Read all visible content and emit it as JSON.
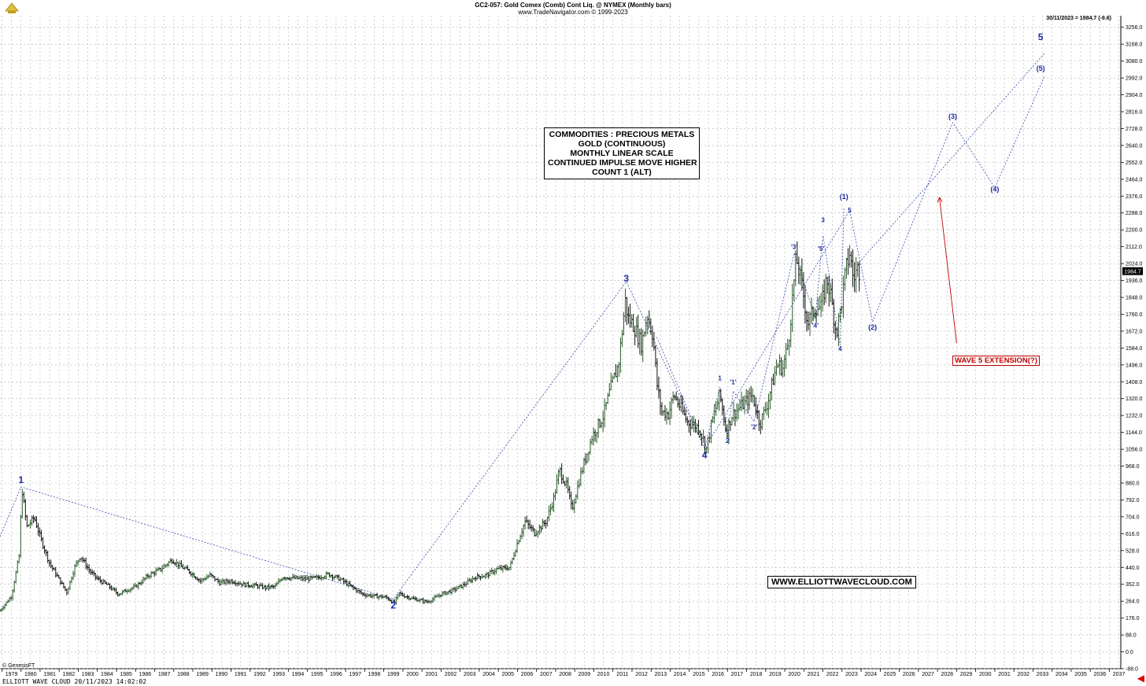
{
  "header": {
    "title": "GC2-057:  Gold Comex (Comb) Cont Liq. @ NYMEX  (Monthly bars)",
    "source": "www.TradeNavigator.com © 1999-2023"
  },
  "last_price_info": "30/11/2023 = 1984.7 (-9.6)",
  "genesis_label": "© GenesisFT",
  "footer": "ELLIOTT WAVE CLOUD    20/11/2023 14:02:02",
  "title_box": [
    "COMMODITIES : PRECIOUS METALS",
    "GOLD (CONTINUOUS)",
    "MONTHLY LINEAR SCALE",
    "CONTINUED IMPULSE MOVE HIGHER",
    "COUNT 1 (ALT)"
  ],
  "website": "WWW.ELLIOTTWAVECLOUD.COM",
  "extension_label": "WAVE 5 EXTENSION(?)",
  "colors": {
    "wave_label": "#1a2aa0",
    "projection": "#3a4ab0",
    "extension": "#c00000",
    "bar_up": "#2a5a2a",
    "bar_down": "#111111",
    "grid": "#b0b0b0"
  },
  "chart_data": {
    "type": "bar",
    "title": "GC2-057:  Gold Comex (Comb) Cont Liq. @ NYMEX  (Monthly bars)",
    "x_range": [
      1978.9,
      2037.6
    ],
    "ylim": [
      -88,
      3300
    ],
    "y_ticks": [
      -88.0,
      0.0,
      88.0,
      176.0,
      264.0,
      352.0,
      440.0,
      528.0,
      616.0,
      704.0,
      792.0,
      880.0,
      968.0,
      1056.0,
      1144.0,
      1232.0,
      1320.0,
      1408.0,
      1496.0,
      1584.0,
      1672.0,
      1760.0,
      1848.0,
      1936.0,
      2024.0,
      2112.0,
      2200.0,
      2288.0,
      2376.0,
      2464.0,
      2552.0,
      2640.0,
      2728.0,
      2816.0,
      2904.0,
      2992.0,
      3080.0,
      3168.0,
      3256.0
    ],
    "x_ticks": [
      1979,
      1980,
      1981,
      1982,
      1983,
      1984,
      1985,
      1986,
      1987,
      1988,
      1989,
      1990,
      1991,
      1992,
      1993,
      1994,
      1995,
      1996,
      1997,
      1998,
      1999,
      2000,
      2001,
      2002,
      2003,
      2004,
      2005,
      2006,
      2007,
      2008,
      2009,
      2010,
      2011,
      2012,
      2013,
      2014,
      2015,
      2016,
      2017,
      2018,
      2019,
      2020,
      2021,
      2022,
      2023,
      2024,
      2025,
      2026,
      2027,
      2028,
      2029,
      2030,
      2031,
      2032,
      2033,
      2034,
      2035,
      2036,
      2037
    ],
    "last_value": "1984.7",
    "price_path": [
      [
        1978.9,
        215
      ],
      [
        1979.5,
        290
      ],
      [
        1979.9,
        500
      ],
      [
        1980.05,
        850
      ],
      [
        1980.3,
        650
      ],
      [
        1980.7,
        700
      ],
      [
        1981.0,
        600
      ],
      [
        1981.5,
        460
      ],
      [
        1982.4,
        310
      ],
      [
        1982.8,
        440
      ],
      [
        1983.1,
        500
      ],
      [
        1983.6,
        420
      ],
      [
        1984.0,
        380
      ],
      [
        1984.5,
        350
      ],
      [
        1985.1,
        300
      ],
      [
        1985.5,
        320
      ],
      [
        1986.0,
        340
      ],
      [
        1986.7,
        400
      ],
      [
        1987.3,
        430
      ],
      [
        1987.9,
        480
      ],
      [
        1988.3,
        450
      ],
      [
        1988.8,
        420
      ],
      [
        1989.4,
        370
      ],
      [
        1989.9,
        400
      ],
      [
        1990.4,
        360
      ],
      [
        1991.0,
        370
      ],
      [
        1991.7,
        350
      ],
      [
        1992.3,
        345
      ],
      [
        1992.8,
        335
      ],
      [
        1993.3,
        340
      ],
      [
        1993.7,
        390
      ],
      [
        1994.2,
        385
      ],
      [
        1994.9,
        380
      ],
      [
        1995.5,
        385
      ],
      [
        1996.1,
        405
      ],
      [
        1996.7,
        380
      ],
      [
        1997.3,
        340
      ],
      [
        1997.9,
        300
      ],
      [
        1998.5,
        290
      ],
      [
        1999.1,
        285
      ],
      [
        1999.55,
        255
      ],
      [
        1999.8,
        305
      ],
      [
        2000.1,
        290
      ],
      [
        2000.6,
        275
      ],
      [
        2001.3,
        260
      ],
      [
        2002.0,
        300
      ],
      [
        2002.6,
        320
      ],
      [
        2003.2,
        350
      ],
      [
        2003.8,
        390
      ],
      [
        2004.4,
        400
      ],
      [
        2004.9,
        430
      ],
      [
        2005.6,
        440
      ],
      [
        2006.0,
        570
      ],
      [
        2006.4,
        680
      ],
      [
        2006.9,
        620
      ],
      [
        2007.5,
        680
      ],
      [
        2007.9,
        800
      ],
      [
        2008.2,
        950
      ],
      [
        2008.6,
        860
      ],
      [
        2008.85,
        740
      ],
      [
        2009.3,
        920
      ],
      [
        2009.9,
        1120
      ],
      [
        2010.5,
        1230
      ],
      [
        2010.9,
        1380
      ],
      [
        2011.3,
        1500
      ],
      [
        2011.65,
        1830
      ],
      [
        2011.8,
        1740
      ],
      [
        2012.1,
        1700
      ],
      [
        2012.5,
        1600
      ],
      [
        2012.8,
        1760
      ],
      [
        2013.1,
        1650
      ],
      [
        2013.3,
        1400
      ],
      [
        2013.55,
        1250
      ],
      [
        2013.9,
        1240
      ],
      [
        2014.2,
        1340
      ],
      [
        2014.6,
        1260
      ],
      [
        2014.9,
        1200
      ],
      [
        2015.5,
        1170
      ],
      [
        2015.9,
        1060
      ],
      [
        2016.2,
        1200
      ],
      [
        2016.6,
        1340
      ],
      [
        2016.95,
        1140
      ],
      [
        2017.2,
        1230
      ],
      [
        2017.7,
        1280
      ],
      [
        2017.95,
        1300
      ],
      [
        2018.3,
        1340
      ],
      [
        2018.7,
        1190
      ],
      [
        2019.1,
        1300
      ],
      [
        2019.6,
        1500
      ],
      [
        2019.9,
        1480
      ],
      [
        2020.2,
        1620
      ],
      [
        2020.6,
        2060
      ],
      [
        2021.0,
        1850
      ],
      [
        2021.2,
        1710
      ],
      [
        2021.6,
        1800
      ],
      [
        2021.9,
        1790
      ],
      [
        2022.2,
        1950
      ],
      [
        2022.4,
        1860
      ],
      [
        2022.7,
        1660
      ],
      [
        2022.95,
        1800
      ],
      [
        2023.2,
        1990
      ],
      [
        2023.4,
        2080
      ],
      [
        2023.6,
        1940
      ],
      [
        2023.8,
        2000
      ],
      [
        2023.9,
        1985
      ]
    ],
    "wave_labels": [
      {
        "label": "1",
        "x": 1980.0,
        "y": 880,
        "size": "big"
      },
      {
        "label": "2",
        "x": 1999.5,
        "y": 225,
        "size": "big"
      },
      {
        "label": "3",
        "x": 2011.7,
        "y": 1930,
        "size": "big"
      },
      {
        "label": "4",
        "x": 2015.8,
        "y": 1010,
        "size": "big"
      },
      {
        "label": "5",
        "x": 2033.4,
        "y": 3190,
        "size": "big"
      },
      {
        "label": "1",
        "x": 2016.6,
        "y": 1415,
        "size": "small"
      },
      {
        "label": "2",
        "x": 2017.0,
        "y": 1090,
        "size": "small"
      },
      {
        "label": "'1'",
        "x": 2017.3,
        "y": 1395,
        "size": "small"
      },
      {
        "label": "'2'",
        "x": 2018.4,
        "y": 1160,
        "size": "small"
      },
      {
        "label": "'3'",
        "x": 2020.5,
        "y": 2100,
        "size": "small"
      },
      {
        "label": "'4'",
        "x": 2021.6,
        "y": 1690,
        "size": "small"
      },
      {
        "label": "'5'",
        "x": 2021.9,
        "y": 2090,
        "size": "small"
      },
      {
        "label": "3",
        "x": 2022.0,
        "y": 2240,
        "size": "small"
      },
      {
        "label": "4",
        "x": 2022.9,
        "y": 1570,
        "size": "small"
      },
      {
        "label": "(1)",
        "x": 2023.1,
        "y": 2360,
        "size": "mid"
      },
      {
        "label": "5",
        "x": 2023.4,
        "y": 2290,
        "size": "small"
      },
      {
        "label": "(2)",
        "x": 2024.6,
        "y": 1680,
        "size": "mid"
      },
      {
        "label": "(3)",
        "x": 2028.8,
        "y": 2780,
        "size": "mid"
      },
      {
        "label": "(4)",
        "x": 2031.0,
        "y": 2400,
        "size": "mid"
      },
      {
        "label": "(5)",
        "x": 2033.4,
        "y": 3030,
        "size": "mid"
      }
    ],
    "projection_lines": [
      [
        [
          1978.9,
          600
        ],
        [
          1980.0,
          860
        ],
        [
          1999.5,
          275
        ],
        [
          2011.7,
          1930
        ],
        [
          2015.8,
          1060
        ],
        [
          2023.4,
          2300
        ],
        [
          2024.6,
          1720
        ],
        [
          2028.8,
          2760
        ],
        [
          2031.0,
          2420
        ],
        [
          2033.6,
          3000
        ]
      ],
      [
        [
          2023.8,
          2020
        ],
        [
          2033.6,
          3120
        ]
      ],
      [
        [
          2015.8,
          1060
        ],
        [
          2016.6,
          1380
        ],
        [
          2017.0,
          1120
        ],
        [
          2017.3,
          1360
        ],
        [
          2018.4,
          1200
        ],
        [
          2020.5,
          2080
        ],
        [
          2021.6,
          1740
        ],
        [
          2021.9,
          2070
        ],
        [
          2022.0,
          2170
        ],
        [
          2022.9,
          1600
        ],
        [
          2023.1,
          2320
        ]
      ],
      [
        [
          2013.3,
          1640
        ],
        [
          2015.8,
          1060
        ]
      ]
    ],
    "extension_arrow": {
      "from": [
        2029.0,
        1610
      ],
      "to": [
        2028.1,
        2370
      ]
    }
  }
}
